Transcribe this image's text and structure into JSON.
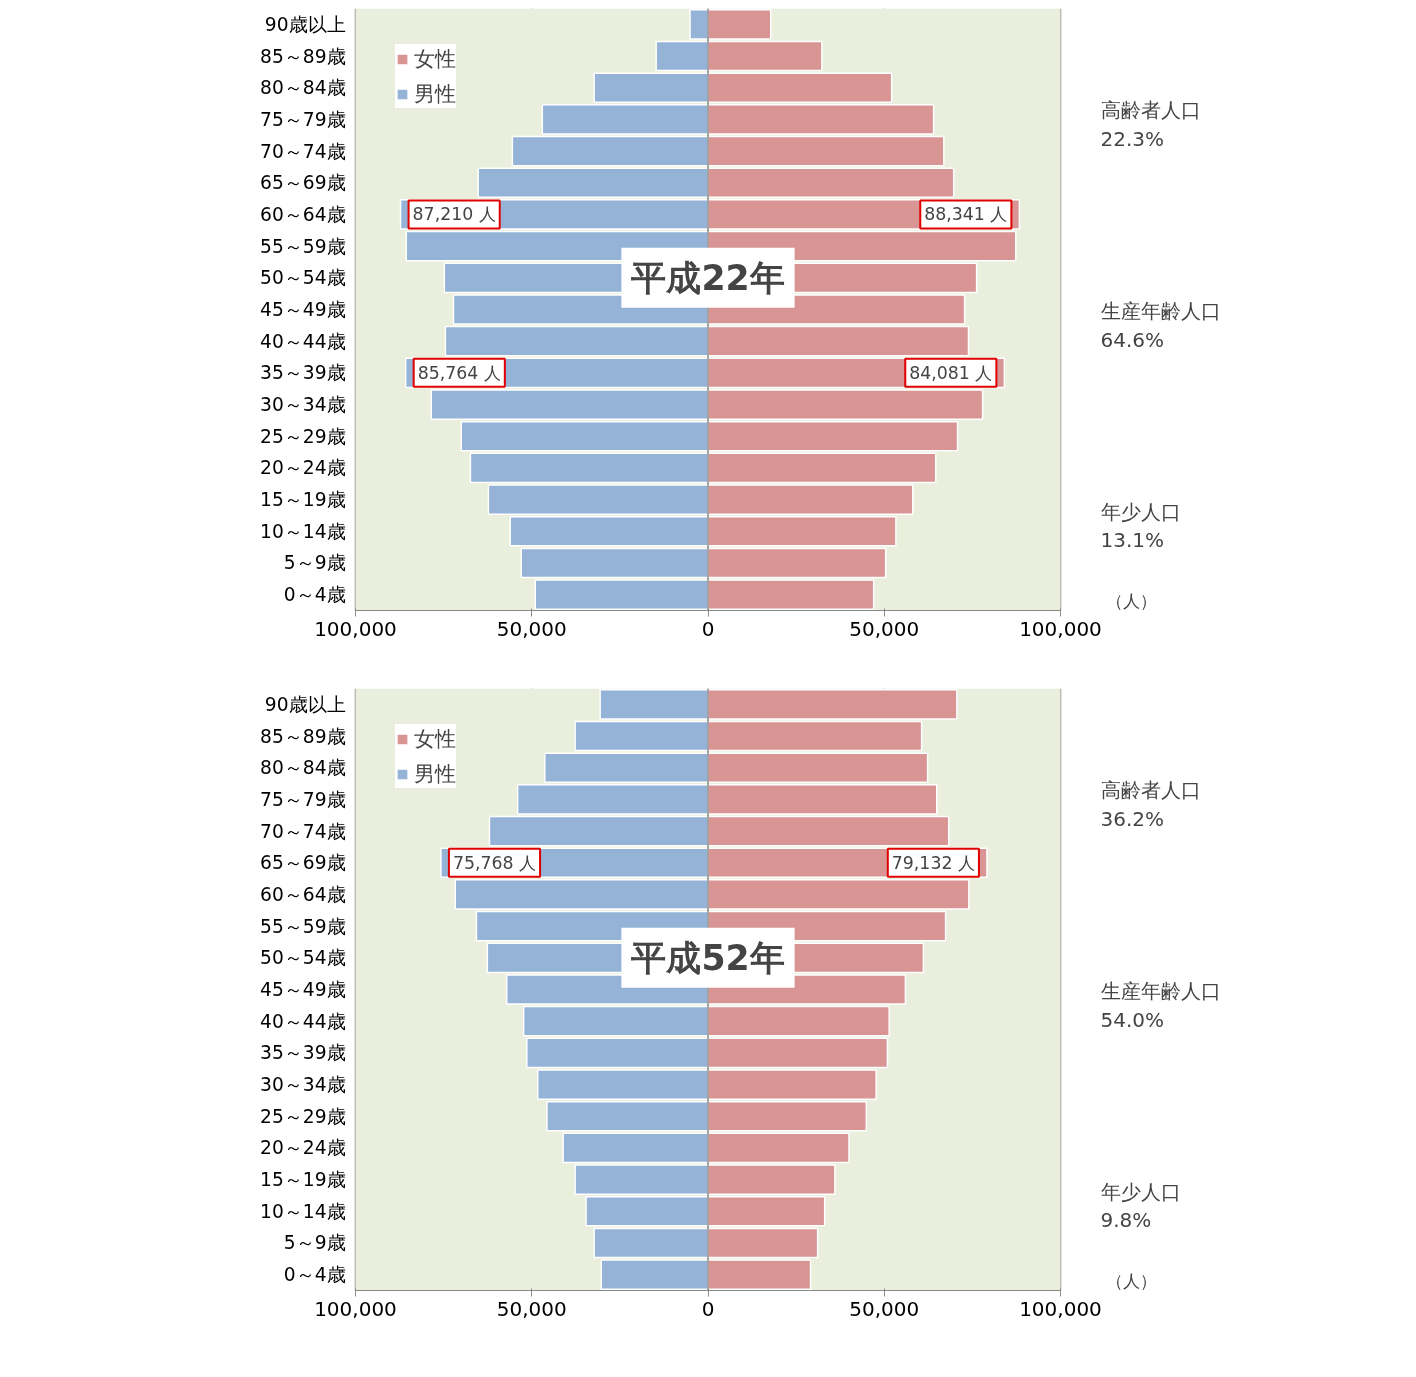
{
  "chart_data": [
    {
      "type": "bar",
      "orientation": "horizontal",
      "stacked": true,
      "title": "平成22年",
      "xlabel": "（人）",
      "categories": [
        "90歳以上",
        "85～89歳",
        "80～84歳",
        "75～79歳",
        "70～74歳",
        "65～69歳",
        "60～64歳",
        "55～59歳",
        "50～54歳",
        "45～49歳",
        "40～44歳",
        "35～39歳",
        "30～34歳",
        "25～29歳",
        "20～24歳",
        "15～19歳",
        "10～14歳",
        "5～9歳",
        "0～4歳"
      ],
      "series": [
        {
          "name": "女性",
          "color": "#d99594",
          "values": [
            17800,
            32300,
            52100,
            64000,
            66900,
            69700,
            88341,
            87300,
            76200,
            72800,
            73900,
            84081,
            77900,
            70800,
            64600,
            58100,
            53300,
            50400,
            47000
          ]
        },
        {
          "name": "男性",
          "color": "#95b3d7",
          "values": [
            -5100,
            -14700,
            -32300,
            -47000,
            -55500,
            -65200,
            -87210,
            -85600,
            -74800,
            -72200,
            -74500,
            -85764,
            -78500,
            -70000,
            -67400,
            -62300,
            -56100,
            -53000,
            -49000
          ]
        }
      ],
      "xlim": [
        -100000,
        100000
      ],
      "xticks": [
        {
          "value": -100000,
          "label": "100,000"
        },
        {
          "value": -50000,
          "label": "50,000"
        },
        0,
        {
          "value": 50000,
          "label": "50,000"
        },
        {
          "value": 100000,
          "label": "100,000"
        }
      ],
      "grid": "x",
      "legend": "top left",
      "annotations": [
        {
          "text": "87,210 人",
          "x": -87210,
          "y": "60～64歳"
        },
        {
          "text": "85,764 人",
          "x": -85764,
          "y": "35～39歳"
        },
        {
          "text": "88,341 人",
          "x": 88341,
          "y": "60～64歳"
        },
        {
          "text": "84,081 人",
          "x": 84081,
          "y": "35～39歳"
        },
        "高齢者人口\n22.3%",
        "生産年齢人口\n64.6%",
        "年少人口\n13.1%"
      ]
    },
    {
      "type": "bar",
      "orientation": "horizontal",
      "stacked": true,
      "title": "平成52年",
      "xlabel": "（人）",
      "categories": [
        "90歳以上",
        "85～89歳",
        "80～84歳",
        "75～79歳",
        "70～74歳",
        "65～69歳",
        "60～64歳",
        "55～59歳",
        "50～54歳",
        "45～49歳",
        "40～44歳",
        "35～39歳",
        "30～34歳",
        "25～29歳",
        "20～24歳",
        "15～19歳",
        "10～14歳",
        "5～9歳",
        "0～4歳"
      ],
      "series": [
        {
          "name": "女性",
          "color": "#d99594",
          "values": [
            70600,
            60600,
            62300,
            64900,
            68300,
            79132,
            74000,
            67400,
            61100,
            56000,
            51400,
            50900,
            47700,
            44900,
            40000,
            36000,
            33100,
            31100,
            29100
          ]
        },
        {
          "name": "男性",
          "color": "#95b3d7",
          "values": [
            -30600,
            -37700,
            -46300,
            -54000,
            -62000,
            -75768,
            -71700,
            -65700,
            -62600,
            -57100,
            -52300,
            -51400,
            -48300,
            -45700,
            -41100,
            -37700,
            -34600,
            -32300,
            -30300
          ]
        }
      ],
      "xlim": [
        -100000,
        100000
      ],
      "xticks": [
        {
          "value": -100000,
          "label": "100,000"
        },
        {
          "value": -50000,
          "label": "50,000"
        },
        0,
        {
          "value": 50000,
          "label": "50,000"
        },
        {
          "value": 100000,
          "label": "100,000"
        }
      ],
      "grid": "x",
      "legend": "top left",
      "annotations": [
        {
          "text": "75,768 人",
          "x": -75768,
          "y": "65～69歳"
        },
        {
          "text": "79,132 人",
          "x": 79132,
          "y": "65～69歳"
        },
        "高齢者人口\n36.2%",
        "生産年齢人口\n54.0%",
        "年少人口\n9.8%"
      ]
    }
  ]
}
